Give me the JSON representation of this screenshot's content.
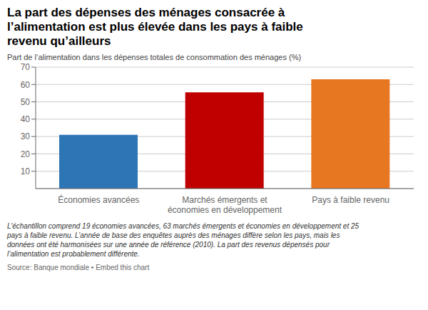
{
  "chart_data": {
    "type": "bar",
    "title": "La part des dépenses des ménages consacrée à\nl’alimentation est plus élevée dans les pays à faible\nrevenu qu’ailleurs",
    "ylabel": "Part de l’alimentation dans les dépenses totales de consommation des ménages (%)",
    "categories": [
      "Économies avancées",
      "Marchés émergents et\néconomies en développement",
      "Pays à faible revenu"
    ],
    "values": [
      31,
      55.5,
      63
    ],
    "colors": [
      "#2E75B6",
      "#C00000",
      "#E87722"
    ],
    "ylim": [
      0,
      70
    ],
    "yticks": [
      10,
      20,
      30,
      40,
      50,
      60,
      70
    ],
    "grid": true,
    "annotations": [
      "L’échantillon comprend 19 économies avancées, 63 marchés émergents et économies en développement et 25\npays à faible revenu. L’année de base des enquêtes auprès des ménages diffère selon les pays, mais les\ndonnées ont été harmonisées sur une année de référence (2010). La part des revenus dépensés pour\nl’alimentation est probablement différente.",
      "Source: Banque mondiale • Embed this chart"
    ]
  }
}
